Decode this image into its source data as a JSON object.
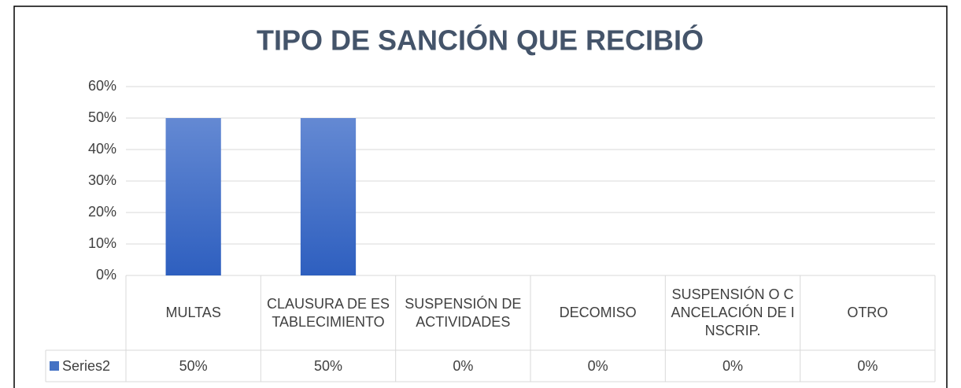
{
  "chart_data": {
    "type": "bar",
    "title": "TIPO DE SANCIÓN QUE RECIBIÓ",
    "categories": [
      "MULTAS",
      "CLAUSURA DE ESTABLECIMIENTO",
      "SUSPENSIÓN DE ACTIVIDADES",
      "DECOMISO",
      "SUSPENSIÓN O CANCELACIÓN DE INSCRIP.",
      "OTRO"
    ],
    "series": [
      {
        "name": "Series2",
        "color": "#4472c4",
        "values": [
          50,
          50,
          0,
          0,
          0,
          0
        ],
        "value_labels": [
          "50%",
          "50%",
          "0%",
          "0%",
          "0%",
          "0%"
        ]
      }
    ],
    "ylim": [
      0,
      60
    ],
    "yticks": [
      {
        "value": 0,
        "label": "0%"
      },
      {
        "value": 10,
        "label": "10%"
      },
      {
        "value": 20,
        "label": "20%"
      },
      {
        "value": 30,
        "label": "30%"
      },
      {
        "value": 40,
        "label": "40%"
      },
      {
        "value": 50,
        "label": "50%"
      },
      {
        "value": 60,
        "label": "60%"
      }
    ],
    "grid": true,
    "legend": "table"
  }
}
